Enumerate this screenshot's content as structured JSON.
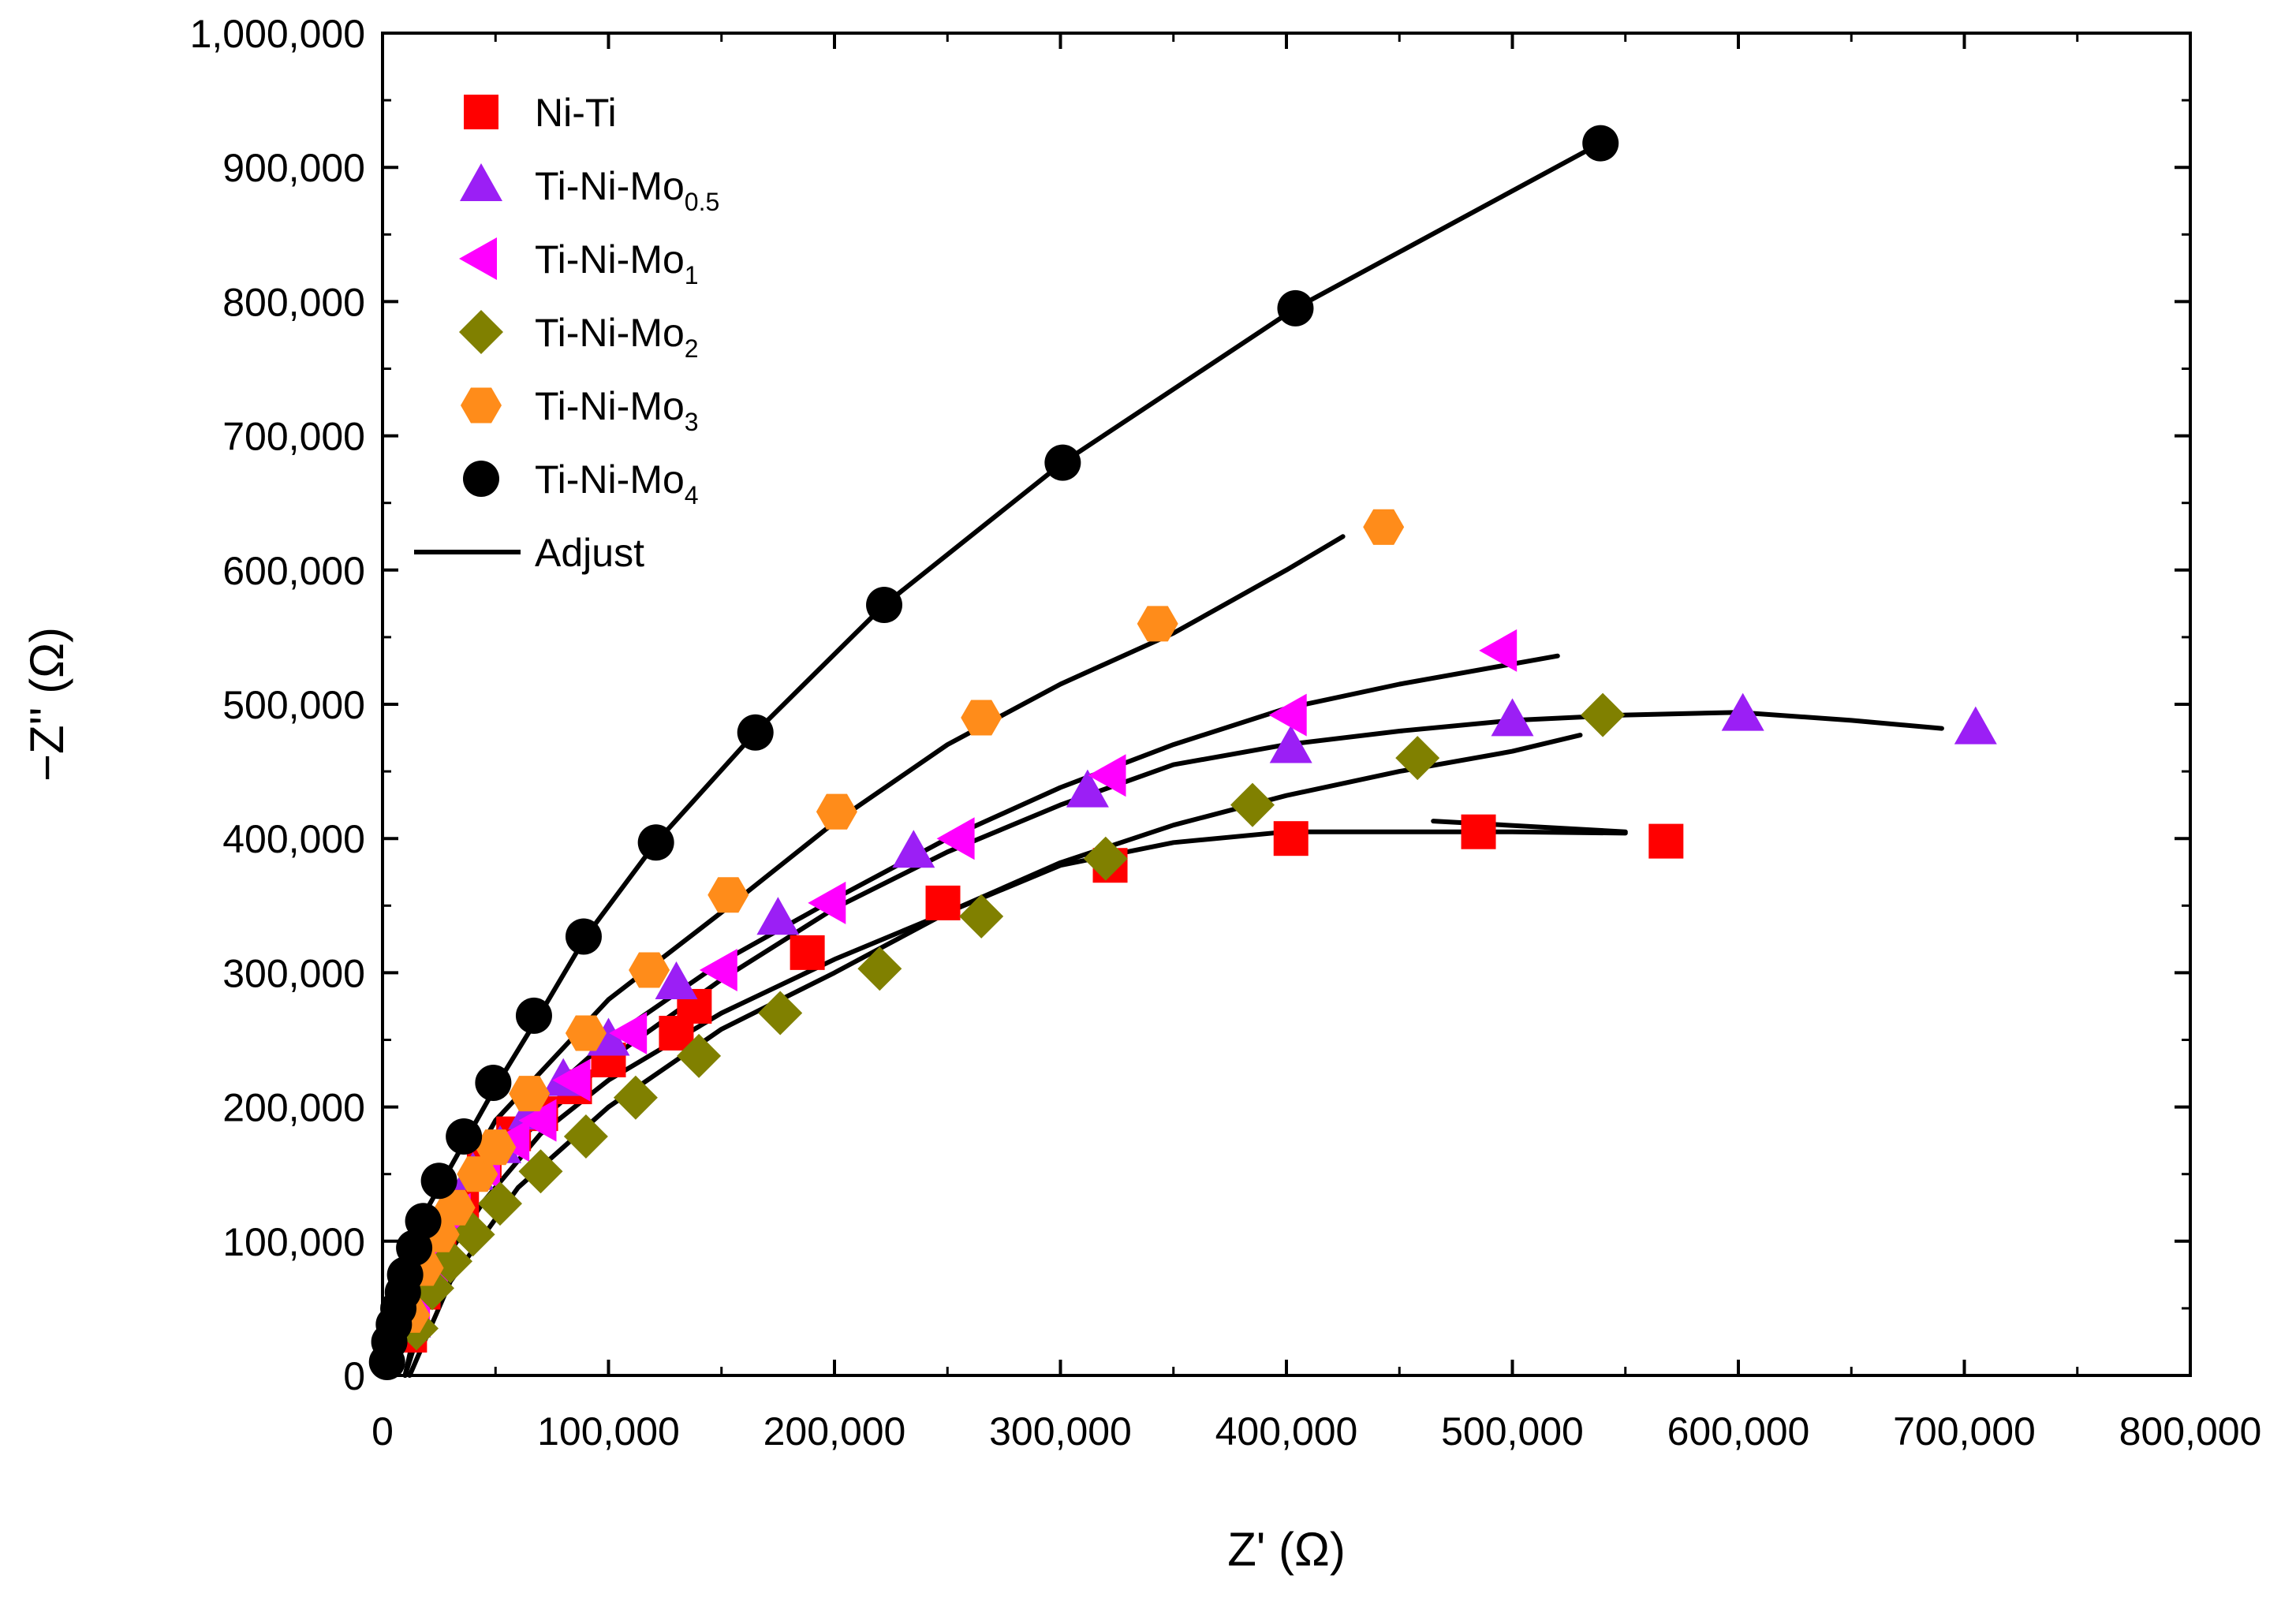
{
  "chart_data": {
    "type": "scatter",
    "title": "",
    "xlabel": "Z' (Ω)",
    "ylabel": "−Z'' (Ω)",
    "xlim": [
      0,
      800000
    ],
    "ylim": [
      0,
      1000000
    ],
    "x_ticks": [
      0,
      100000,
      200000,
      300000,
      400000,
      500000,
      600000,
      700000,
      800000
    ],
    "y_ticks": [
      0,
      100000,
      200000,
      300000,
      400000,
      500000,
      600000,
      700000,
      800000,
      900000,
      1000000
    ],
    "x_tick_labels": [
      "0",
      "100,000",
      "200,000",
      "300,000",
      "400,000",
      "500,000",
      "600,000",
      "700,000",
      "800,000"
    ],
    "y_tick_labels": [
      "0",
      "100,000",
      "200,000",
      "300,000",
      "400,000",
      "500,000",
      "600,000",
      "700,000",
      "800,000",
      "900,000",
      "1,000,000"
    ],
    "grid": false,
    "legend_position": "top-left",
    "series": [
      {
        "name": "Ni-Ti",
        "base": "Ni-Ti",
        "sub": "",
        "marker": "square",
        "color": "#ff0000",
        "points": [
          [
            12000,
            30000
          ],
          [
            18000,
            62000
          ],
          [
            25000,
            95000
          ],
          [
            35000,
            130000
          ],
          [
            45000,
            160000
          ],
          [
            58000,
            180000
          ],
          [
            70000,
            195000
          ],
          [
            85000,
            215000
          ],
          [
            100000,
            235000
          ],
          [
            130000,
            255000
          ],
          [
            138000,
            275000
          ],
          [
            188000,
            315000
          ],
          [
            248000,
            352000
          ],
          [
            322000,
            380000
          ],
          [
            402000,
            400000
          ],
          [
            485000,
            405000
          ],
          [
            568000,
            398000
          ]
        ]
      },
      {
        "name": "Ti-Ni-Mo0.5",
        "base": "Ti-Ni-Mo",
        "sub": "0.5",
        "marker": "triangle-up",
        "color": "#9b1ff5",
        "points": [
          [
            12000,
            40000
          ],
          [
            20000,
            80000
          ],
          [
            30000,
            120000
          ],
          [
            40000,
            150000
          ],
          [
            52000,
            170000
          ],
          [
            65000,
            195000
          ],
          [
            80000,
            220000
          ],
          [
            100000,
            250000
          ],
          [
            130000,
            292000
          ],
          [
            175000,
            340000
          ],
          [
            235000,
            390000
          ],
          [
            312000,
            435000
          ],
          [
            402000,
            468000
          ],
          [
            500000,
            488000
          ],
          [
            602000,
            492000
          ],
          [
            705000,
            482000
          ]
        ]
      },
      {
        "name": "Ti-Ni-Mo1",
        "base": "Ti-Ni-Mo",
        "sub": "1",
        "marker": "triangle-left",
        "color": "#ff00ff",
        "points": [
          [
            14000,
            45000
          ],
          [
            22000,
            85000
          ],
          [
            32000,
            120000
          ],
          [
            45000,
            155000
          ],
          [
            58000,
            175000
          ],
          [
            70000,
            190000
          ],
          [
            85000,
            220000
          ],
          [
            110000,
            255000
          ],
          [
            150000,
            302000
          ],
          [
            198000,
            352000
          ],
          [
            255000,
            400000
          ],
          [
            322000,
            447000
          ],
          [
            402000,
            492000
          ],
          [
            495000,
            540000
          ]
        ]
      },
      {
        "name": "Ti-Ni-Mo2",
        "base": "Ti-Ni-Mo",
        "sub": "2",
        "marker": "diamond",
        "color": "#808000",
        "points": [
          [
            15000,
            35000
          ],
          [
            22000,
            65000
          ],
          [
            30000,
            85000
          ],
          [
            40000,
            105000
          ],
          [
            52000,
            128000
          ],
          [
            70000,
            152000
          ],
          [
            90000,
            178000
          ],
          [
            112000,
            207000
          ],
          [
            140000,
            238000
          ],
          [
            176000,
            270000
          ],
          [
            220000,
            303000
          ],
          [
            265000,
            342000
          ],
          [
            320000,
            385000
          ],
          [
            385000,
            425000
          ],
          [
            458000,
            460000
          ],
          [
            540000,
            492000
          ]
        ]
      },
      {
        "name": "Ti-Ni-Mo3",
        "base": "Ti-Ni-Mo",
        "sub": "3",
        "marker": "hexagon",
        "color": "#ff8c1a",
        "points": [
          [
            12000,
            45000
          ],
          [
            18000,
            80000
          ],
          [
            25000,
            105000
          ],
          [
            32000,
            125000
          ],
          [
            42000,
            150000
          ],
          [
            50000,
            170000
          ],
          [
            65000,
            210000
          ],
          [
            90000,
            255000
          ],
          [
            118000,
            302000
          ],
          [
            153000,
            358000
          ],
          [
            201000,
            420000
          ],
          [
            265000,
            490000
          ],
          [
            343000,
            560000
          ],
          [
            443000,
            632000
          ]
        ]
      },
      {
        "name": "Ti-Ni-Mo4",
        "base": "Ti-Ni-Mo",
        "sub": "4",
        "marker": "circle",
        "color": "#000000",
        "points": [
          [
            2000,
            10000
          ],
          [
            3000,
            25000
          ],
          [
            5000,
            38000
          ],
          [
            7000,
            50000
          ],
          [
            9000,
            62000
          ],
          [
            10000,
            75000
          ],
          [
            14000,
            95000
          ],
          [
            18000,
            115000
          ],
          [
            25000,
            145000
          ],
          [
            36000,
            178000
          ],
          [
            49000,
            218000
          ],
          [
            67000,
            268000
          ],
          [
            89000,
            327000
          ],
          [
            121000,
            397000
          ],
          [
            165000,
            479000
          ],
          [
            222000,
            574000
          ],
          [
            301000,
            680000
          ],
          [
            404000,
            795000
          ],
          [
            539000,
            918000
          ]
        ]
      }
    ],
    "fit_label": "Adjust",
    "fit_lines": [
      [
        [
          10000,
          0
        ],
        [
          25000,
          80000
        ],
        [
          45000,
          130000
        ],
        [
          70000,
          180000
        ],
        [
          100000,
          220000
        ],
        [
          150000,
          270000
        ],
        [
          200000,
          310000
        ],
        [
          250000,
          345000
        ],
        [
          300000,
          380000
        ],
        [
          350000,
          397000
        ],
        [
          400000,
          405000
        ],
        [
          450000,
          405000
        ],
        [
          500000,
          405000
        ],
        [
          550000,
          404000
        ]
      ],
      [
        [
          10000,
          0
        ],
        [
          25000,
          100000
        ],
        [
          50000,
          160000
        ],
        [
          100000,
          235000
        ],
        [
          150000,
          295000
        ],
        [
          200000,
          348000
        ],
        [
          250000,
          390000
        ],
        [
          300000,
          425000
        ],
        [
          350000,
          455000
        ],
        [
          400000,
          470000
        ],
        [
          450000,
          480000
        ],
        [
          500000,
          488000
        ],
        [
          550000,
          492000
        ],
        [
          600000,
          494000
        ],
        [
          650000,
          488000
        ],
        [
          690000,
          482000
        ]
      ],
      [
        [
          10000,
          0
        ],
        [
          25000,
          110000
        ],
        [
          50000,
          175000
        ],
        [
          100000,
          250000
        ],
        [
          150000,
          308000
        ],
        [
          200000,
          355000
        ],
        [
          250000,
          400000
        ],
        [
          300000,
          438000
        ],
        [
          350000,
          470000
        ],
        [
          400000,
          497000
        ],
        [
          450000,
          515000
        ],
        [
          500000,
          530000
        ],
        [
          520000,
          536000
        ]
      ],
      [
        [
          12000,
          0
        ],
        [
          30000,
          70000
        ],
        [
          60000,
          140000
        ],
        [
          100000,
          200000
        ],
        [
          150000,
          258000
        ],
        [
          200000,
          300000
        ],
        [
          250000,
          345000
        ],
        [
          300000,
          382000
        ],
        [
          350000,
          410000
        ],
        [
          400000,
          432000
        ],
        [
          450000,
          450000
        ],
        [
          500000,
          465000
        ],
        [
          530000,
          477000
        ]
      ],
      [
        [
          10000,
          0
        ],
        [
          25000,
          115000
        ],
        [
          50000,
          190000
        ],
        [
          100000,
          280000
        ],
        [
          150000,
          345000
        ],
        [
          200000,
          412000
        ],
        [
          250000,
          470000
        ],
        [
          300000,
          515000
        ],
        [
          350000,
          553000
        ],
        [
          400000,
          600000
        ],
        [
          425000,
          625000
        ]
      ],
      [
        [
          1000,
          0
        ],
        [
          4000,
          40000
        ],
        [
          10000,
          80000
        ],
        [
          20000,
          125000
        ],
        [
          35000,
          170000
        ],
        [
          50000,
          215000
        ],
        [
          70000,
          270000
        ],
        [
          90000,
          327000
        ],
        [
          121000,
          397000
        ],
        [
          165000,
          479000
        ],
        [
          222000,
          574000
        ],
        [
          301000,
          680000
        ],
        [
          404000,
          795000
        ],
        [
          539000,
          918000
        ]
      ],
      [
        [
          465000,
          413000
        ],
        [
          550000,
          405000
        ]
      ]
    ]
  }
}
